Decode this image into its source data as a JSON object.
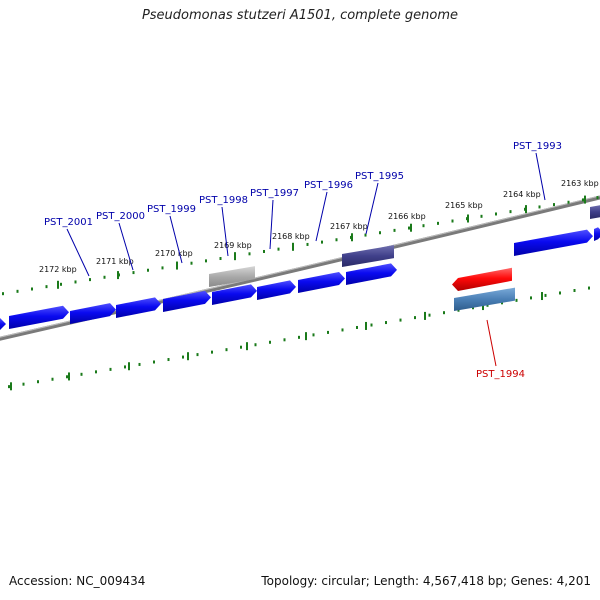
{
  "title": "Pseudomonas stutzeri A1501, complete genome",
  "footer": {
    "accession": "Accession: NC_009434",
    "summary": "Topology: circular; Length: 4,567,418 bp; Genes: 4,201"
  },
  "colors": {
    "gene_forward": "#0a0af0",
    "gene_selected": "#ff0a0a",
    "gene_gray": "#a9a9a9",
    "gene_purple": "#40408a",
    "gene_steel": "#4a7fb5",
    "tick": "#1a7a1a",
    "label_blue": "#0000aa",
    "label_red": "#cc0000",
    "backbone": "#808080"
  },
  "kbp_ticks": [
    "2172 kbp",
    "2171 kbp",
    "2170 kbp",
    "2169 kbp",
    "2168 kbp",
    "2167 kbp",
    "2166 kbp",
    "2165 kbp",
    "2164 kbp",
    "2163 kbp"
  ],
  "gene_labels": [
    {
      "text": "PST_2001",
      "kind": "forward"
    },
    {
      "text": "PST_2000",
      "kind": "forward"
    },
    {
      "text": "PST_1999",
      "kind": "forward"
    },
    {
      "text": "PST_1998",
      "kind": "forward"
    },
    {
      "text": "PST_1997",
      "kind": "forward"
    },
    {
      "text": "PST_1996",
      "kind": "forward"
    },
    {
      "text": "PST_1995",
      "kind": "forward"
    },
    {
      "text": "PST_1993",
      "kind": "forward"
    },
    {
      "text": "PST_1994",
      "kind": "reverse-selected"
    }
  ]
}
